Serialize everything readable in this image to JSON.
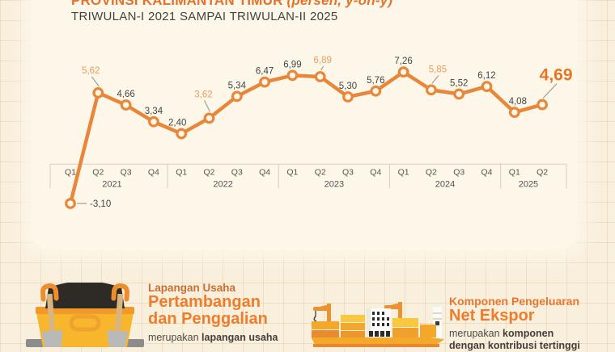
{
  "header": {
    "title_main": "PROVINSI KALIMANTAN TIMUR",
    "title_suffix": "(persen, y-on-y)",
    "subtitle": "TRIWULAN-I 2021 SAMPAI TRIWULAN-II 2025"
  },
  "chart_data": {
    "type": "line",
    "title": "PROVINSI KALIMANTAN TIMUR (persen, y-on-y)",
    "subtitle": "TRIWULAN-I 2021 SAMPAI TRIWULAN-II 2025",
    "categories": [
      "Q1 2021",
      "Q2 2021",
      "Q3 2021",
      "Q4 2021",
      "Q1 2022",
      "Q2 2022",
      "Q3 2022",
      "Q4 2022",
      "Q1 2023",
      "Q2 2023",
      "Q3 2023",
      "Q4 2023",
      "Q1 2024",
      "Q2 2024",
      "Q3 2024",
      "Q4 2024",
      "Q1 2025",
      "Q2 2025"
    ],
    "values": [
      -3.1,
      5.62,
      4.66,
      3.34,
      2.4,
      3.62,
      5.34,
      6.47,
      6.99,
      6.89,
      5.3,
      5.76,
      7.26,
      5.85,
      5.52,
      6.12,
      4.08,
      4.69
    ],
    "point_labels": [
      "-3,10",
      "5,62",
      "4,66",
      "3,34",
      "2,40",
      "3,62",
      "5,34",
      "6,47",
      "6,99",
      "6,89",
      "5,30",
      "5,76",
      "7,26",
      "5,85",
      "5,52",
      "6,12",
      "4,08",
      "4,69"
    ],
    "year_groups": [
      {
        "year": "2021",
        "quarters": [
          "Q1",
          "Q2",
          "Q3",
          "Q4"
        ]
      },
      {
        "year": "2022",
        "quarters": [
          "Q1",
          "Q2",
          "Q3",
          "Q4"
        ]
      },
      {
        "year": "2023",
        "quarters": [
          "Q1",
          "Q2",
          "Q3",
          "Q4"
        ]
      },
      {
        "year": "2024",
        "quarters": [
          "Q1",
          "Q2",
          "Q3",
          "Q4"
        ]
      },
      {
        "year": "2025",
        "quarters": [
          "Q1",
          "Q2"
        ]
      }
    ],
    "highlight_indices": [
      1,
      5,
      9,
      13
    ],
    "final_index": 17,
    "ylim": [
      -4,
      8
    ],
    "grid": false,
    "legend": "none",
    "colors": {
      "line": "#E8873A",
      "marker_fill": "#FCF7E9",
      "label_dark": "#454545",
      "label_accent": "#EB9C5A",
      "label_final": "#E87425",
      "axis": "#D9CDB8",
      "axis_text": "#57534E",
      "leader": "#A59E92"
    }
  },
  "sections": {
    "mining": {
      "icon": "dump-truck-icon",
      "kicker": "Lapangan Usaha",
      "title_line1": "Pertambangan",
      "title_line2": "dan Penggalian",
      "desc_prefix": "merupakan ",
      "desc_bold": "lapangan usaha"
    },
    "net_export": {
      "icon": "cargo-ship-icon",
      "kicker": "Komponen Pengeluaran",
      "title": "Net Ekspor",
      "desc_prefix": "merupakan ",
      "desc_bold": "komponen",
      "desc_line2": "dengan kontribusi tertinggi"
    }
  }
}
